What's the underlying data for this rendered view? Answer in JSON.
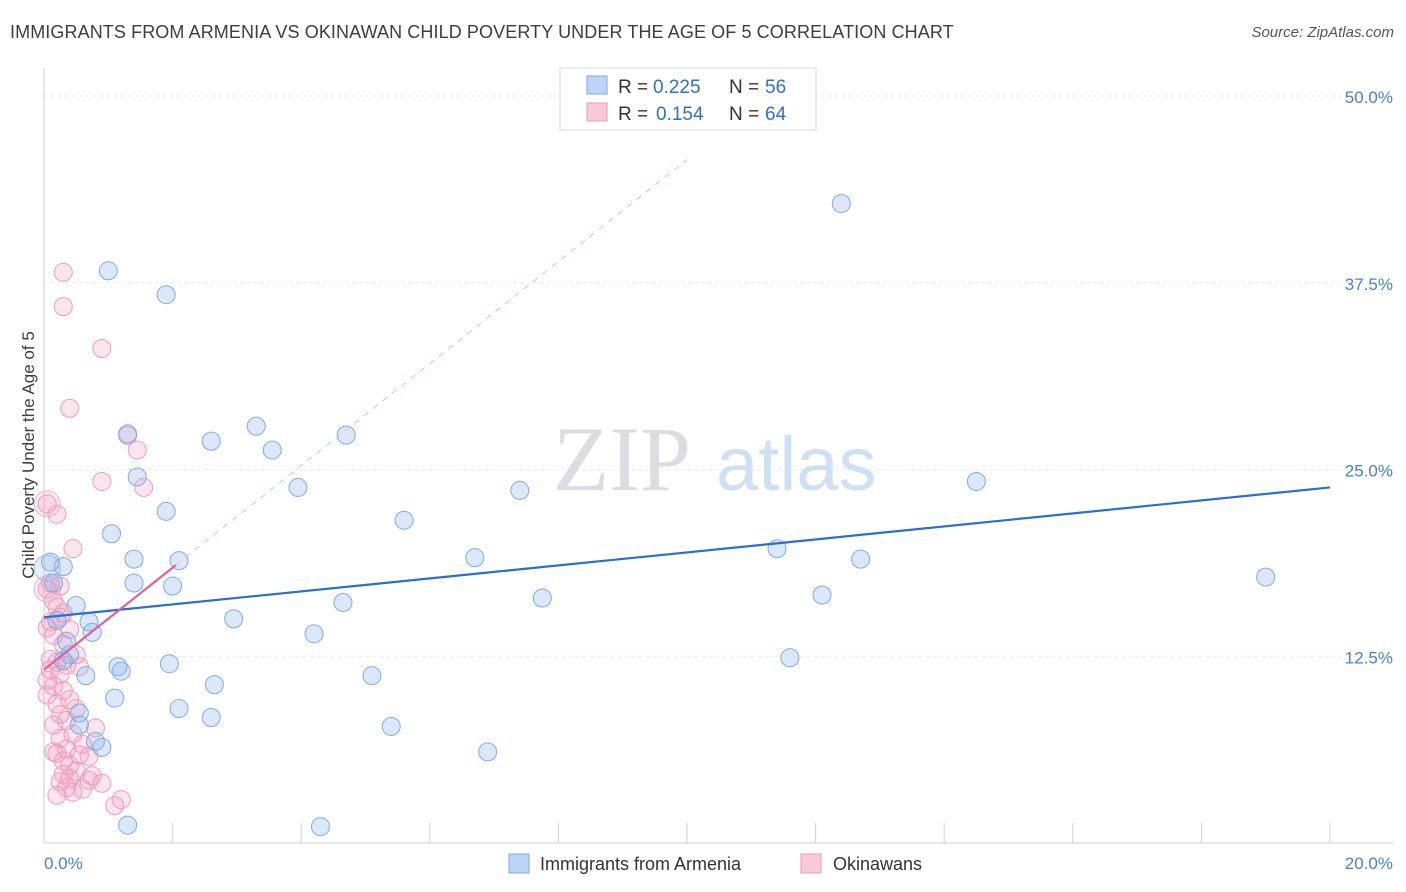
{
  "title": "IMMIGRANTS FROM ARMENIA VS OKINAWAN CHILD POVERTY UNDER THE AGE OF 5 CORRELATION CHART",
  "source": "Source: ZipAtlas.com",
  "watermark": {
    "zip": "ZIP",
    "atlas": "atlas"
  },
  "legend": {
    "r_label": "R =",
    "n_label": "N =",
    "rows": [
      {
        "r": "0.225",
        "n": "56"
      },
      {
        "r": "0.154",
        "n": "64"
      }
    ]
  },
  "bottom_legend": [
    "Immigrants from Armenia",
    "Okinawans"
  ],
  "chart_data": {
    "type": "scatter",
    "title": "IMMIGRANTS FROM ARMENIA VS OKINAWAN CHILD POVERTY UNDER THE AGE OF 5 CORRELATION CHART",
    "xlabel": "",
    "ylabel": "Child Poverty Under the Age of 5",
    "xlim": [
      0,
      20
    ],
    "ylim": [
      0,
      52
    ],
    "x_tick_labels": [
      "0.0%",
      "20.0%"
    ],
    "y_ticks": [
      12.5,
      25.0,
      37.5,
      50.0
    ],
    "y_tick_labels": [
      "12.5%",
      "25.0%",
      "37.5%",
      "50.0%"
    ],
    "colors": {
      "blue": "#6fa3e8",
      "pink": "#f08fb0",
      "blue_line": "#2a6fcc",
      "pink_line": "#e0609a"
    },
    "series": [
      {
        "name": "Immigrants from Armenia",
        "R": 0.225,
        "N": 56,
        "trend": {
          "x0": 0,
          "y0": 15.1,
          "x1": 20,
          "y1": 23.8
        },
        "points": [
          [
            0.3,
            18.5
          ],
          [
            0.15,
            17.4
          ],
          [
            0.5,
            15.9
          ],
          [
            0.7,
            14.8
          ],
          [
            0.75,
            14.1
          ],
          [
            0.35,
            13.5
          ],
          [
            0.4,
            12.6
          ],
          [
            0.65,
            11.2
          ],
          [
            0.55,
            8.7
          ],
          [
            0.8,
            6.8
          ],
          [
            0.9,
            6.4
          ],
          [
            0.55,
            7.9
          ],
          [
            1.0,
            38.3
          ],
          [
            1.3,
            27.3
          ],
          [
            1.4,
            19.0
          ],
          [
            1.05,
            20.7
          ],
          [
            1.45,
            24.5
          ],
          [
            1.4,
            17.4
          ],
          [
            1.1,
            9.7
          ],
          [
            1.2,
            11.5
          ],
          [
            1.15,
            11.8
          ],
          [
            1.9,
            36.7
          ],
          [
            1.9,
            22.2
          ],
          [
            2.1,
            18.9
          ],
          [
            2.0,
            17.2
          ],
          [
            1.95,
            12.0
          ],
          [
            2.1,
            9.0
          ],
          [
            2.6,
            26.9
          ],
          [
            2.65,
            10.6
          ],
          [
            2.6,
            8.4
          ],
          [
            2.95,
            15.0
          ],
          [
            3.3,
            27.9
          ],
          [
            3.55,
            26.3
          ],
          [
            3.95,
            23.8
          ],
          [
            4.2,
            14.0
          ],
          [
            4.3,
            1.1
          ],
          [
            4.7,
            27.3
          ],
          [
            4.65,
            16.1
          ],
          [
            5.1,
            11.2
          ],
          [
            5.4,
            7.8
          ],
          [
            5.6,
            21.6
          ],
          [
            6.7,
            19.1
          ],
          [
            6.9,
            6.1
          ],
          [
            7.4,
            23.6
          ],
          [
            7.75,
            16.4
          ],
          [
            11.4,
            19.7
          ],
          [
            11.6,
            12.4
          ],
          [
            12.1,
            16.6
          ],
          [
            12.4,
            42.8
          ],
          [
            12.7,
            19.0
          ],
          [
            14.5,
            24.2
          ],
          [
            19.0,
            17.8
          ],
          [
            0.2,
            14.9
          ],
          [
            0.3,
            12.2
          ],
          [
            0.1,
            18.8
          ],
          [
            1.3,
            1.2
          ]
        ]
      },
      {
        "name": "Okinawans",
        "R": 0.154,
        "N": 64,
        "trend": {
          "x0": 0,
          "y0": 11.6,
          "x1": 2.05,
          "y1": 18.6
        },
        "points": [
          [
            0.3,
            38.2
          ],
          [
            0.3,
            35.9
          ],
          [
            0.9,
            33.1
          ],
          [
            0.4,
            29.1
          ],
          [
            1.3,
            27.4
          ],
          [
            1.45,
            26.3
          ],
          [
            0.9,
            24.2
          ],
          [
            1.55,
            23.8
          ],
          [
            0.05,
            22.7
          ],
          [
            0.2,
            22.0
          ],
          [
            0.45,
            19.7
          ],
          [
            0.1,
            17.4
          ],
          [
            0.25,
            17.2
          ],
          [
            0.05,
            17.0
          ],
          [
            0.15,
            16.2
          ],
          [
            0.2,
            15.8
          ],
          [
            0.3,
            15.4
          ],
          [
            0.25,
            15.1
          ],
          [
            0.1,
            14.8
          ],
          [
            0.05,
            14.4
          ],
          [
            0.4,
            14.3
          ],
          [
            0.15,
            13.9
          ],
          [
            0.3,
            13.3
          ],
          [
            0.5,
            12.6
          ],
          [
            0.2,
            12.1
          ],
          [
            0.35,
            11.9
          ],
          [
            0.1,
            11.6
          ],
          [
            0.25,
            11.3
          ],
          [
            0.05,
            10.9
          ],
          [
            0.15,
            10.5
          ],
          [
            0.3,
            10.2
          ],
          [
            0.05,
            9.9
          ],
          [
            0.4,
            9.6
          ],
          [
            0.2,
            9.3
          ],
          [
            0.5,
            9.0
          ],
          [
            0.25,
            8.6
          ],
          [
            0.35,
            8.2
          ],
          [
            0.15,
            7.9
          ],
          [
            0.8,
            7.7
          ],
          [
            0.45,
            7.3
          ],
          [
            0.25,
            7.0
          ],
          [
            0.6,
            6.6
          ],
          [
            0.35,
            6.3
          ],
          [
            0.2,
            6.0
          ],
          [
            0.55,
            5.9
          ],
          [
            0.7,
            5.8
          ],
          [
            0.3,
            5.5
          ],
          [
            0.4,
            5.2
          ],
          [
            0.5,
            4.8
          ],
          [
            0.3,
            4.6
          ],
          [
            0.75,
            4.5
          ],
          [
            0.4,
            4.3
          ],
          [
            0.25,
            4.1
          ],
          [
            0.7,
            4.2
          ],
          [
            0.6,
            3.6
          ],
          [
            0.45,
            3.4
          ],
          [
            0.35,
            3.7
          ],
          [
            0.2,
            3.2
          ],
          [
            1.2,
            2.9
          ],
          [
            1.1,
            2.5
          ],
          [
            0.9,
            4.0
          ],
          [
            0.15,
            6.1
          ],
          [
            0.55,
            11.8
          ],
          [
            0.1,
            12.3
          ]
        ]
      }
    ]
  }
}
